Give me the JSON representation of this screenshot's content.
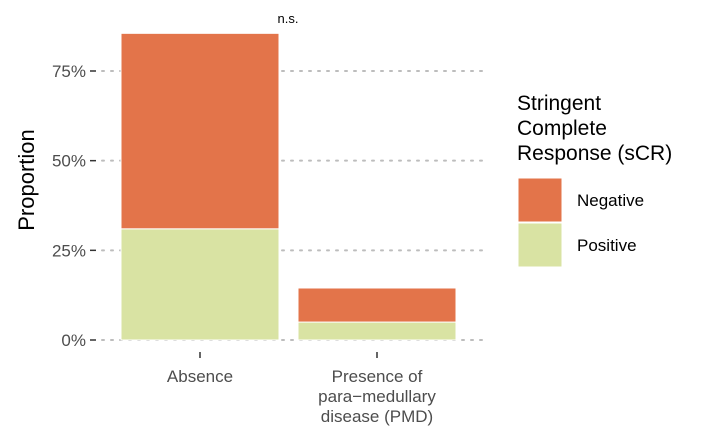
{
  "chart_data": {
    "type": "bar",
    "stacked": true,
    "ylabel": "Proportion",
    "ylim": [
      0,
      0.9
    ],
    "yticks": [
      {
        "value": 0,
        "label": "0%"
      },
      {
        "value": 0.25,
        "label": "25%"
      },
      {
        "value": 0.5,
        "label": "50%"
      },
      {
        "value": 0.75,
        "label": "75%"
      }
    ],
    "categories": [
      {
        "lines": [
          "Absence"
        ]
      },
      {
        "lines": [
          "Presence of",
          "para−medullary",
          "disease (PMD)"
        ]
      }
    ],
    "series": [
      {
        "name": "Positive",
        "color": "#d9e3a3",
        "values": [
          0.31,
          0.05
        ]
      },
      {
        "name": "Negative",
        "color": "#e3744a",
        "values": [
          0.545,
          0.095
        ]
      }
    ],
    "grid": {
      "horizontal": true,
      "vertical": false,
      "style": "dotted"
    },
    "annotation": {
      "text": "n.s.",
      "position": "above-first-bar"
    },
    "legend": {
      "placement": "right",
      "title_lines": [
        "Stringent",
        "Complete",
        "Response (sCR)"
      ],
      "entries": [
        {
          "label": "Negative",
          "color": "#e3744a"
        },
        {
          "label": "Positive",
          "color": "#d9e3a3"
        }
      ]
    }
  }
}
